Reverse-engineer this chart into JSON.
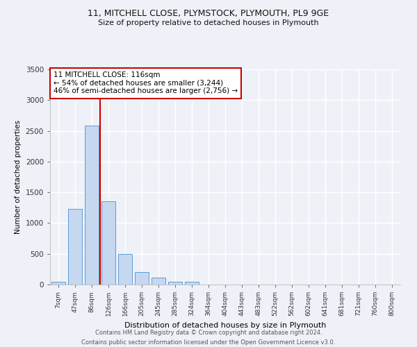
{
  "title1": "11, MITCHELL CLOSE, PLYMSTOCK, PLYMOUTH, PL9 9GE",
  "title2": "Size of property relative to detached houses in Plymouth",
  "xlabel": "Distribution of detached houses by size in Plymouth",
  "ylabel": "Number of detached properties",
  "bar_labels": [
    "7sqm",
    "47sqm",
    "86sqm",
    "126sqm",
    "166sqm",
    "205sqm",
    "245sqm",
    "285sqm",
    "324sqm",
    "364sqm",
    "404sqm",
    "443sqm",
    "483sqm",
    "522sqm",
    "562sqm",
    "602sqm",
    "641sqm",
    "681sqm",
    "721sqm",
    "760sqm",
    "800sqm"
  ],
  "bar_values": [
    50,
    1230,
    2590,
    1350,
    500,
    200,
    110,
    50,
    40,
    0,
    0,
    0,
    0,
    0,
    0,
    0,
    0,
    0,
    0,
    0,
    0
  ],
  "bar_color": "#c5d8f0",
  "bar_edge_color": "#5b9bd5",
  "vline_x_index": 3,
  "vline_color": "#cc0000",
  "ylim": [
    0,
    3500
  ],
  "yticks": [
    0,
    500,
    1000,
    1500,
    2000,
    2500,
    3000,
    3500
  ],
  "annotation_title": "11 MITCHELL CLOSE: 116sqm",
  "annotation_line1": "← 54% of detached houses are smaller (3,244)",
  "annotation_line2": "46% of semi-detached houses are larger (2,756) →",
  "annotation_box_color": "#ffffff",
  "annotation_box_edge": "#cc0000",
  "footer1": "Contains HM Land Registry data © Crown copyright and database right 2024.",
  "footer2": "Contains public sector information licensed under the Open Government Licence v3.0.",
  "bg_color": "#eef2f8"
}
